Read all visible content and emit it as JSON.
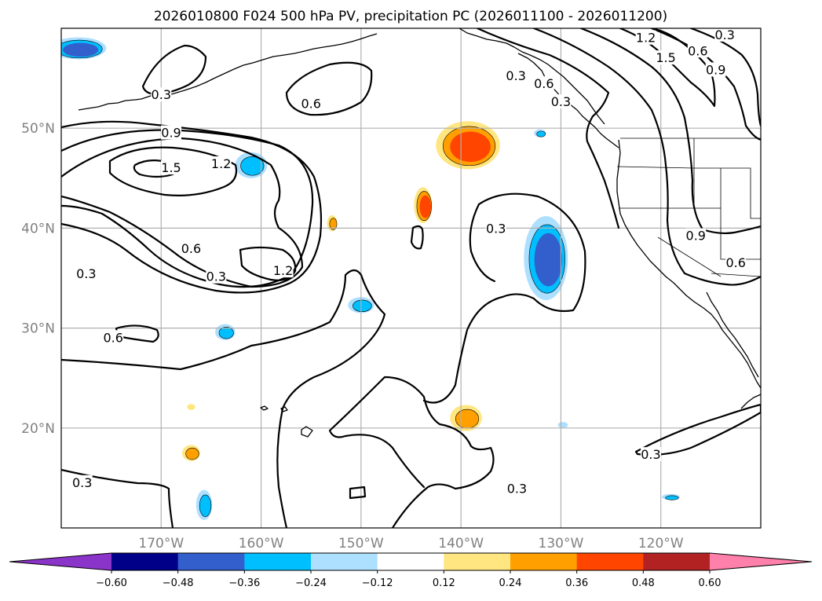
{
  "chart_data": {
    "type": "contour-map",
    "title": "2026010800 F024 500 hPa PV, precipitation PC (2026011100 - 2026011200)",
    "lat_ticks": [
      "50°N",
      "40°N",
      "30°N",
      "20°N"
    ],
    "lat_values": [
      50,
      40,
      30,
      20
    ],
    "lon_ticks": [
      "170°W",
      "160°W",
      "150°W",
      "140°W",
      "130°W",
      "120°W"
    ],
    "lon_values": [
      -170,
      -160,
      -150,
      -140,
      -130,
      -120
    ],
    "extent": {
      "lon_min": -180,
      "lon_max": -110,
      "lat_min": 10,
      "lat_max": 60
    },
    "grid": true,
    "contour_levels": [
      0.3,
      0.6,
      0.9,
      1.2,
      1.5
    ],
    "contour_labels": [
      {
        "text": "0.3",
        "lon": -170,
        "lat": 53.3
      },
      {
        "text": "0.9",
        "lon": -169,
        "lat": 49.5
      },
      {
        "text": "1.5",
        "lon": -169,
        "lat": 46.0
      },
      {
        "text": "1.2",
        "lon": -164,
        "lat": 46.4
      },
      {
        "text": "0.6",
        "lon": -155,
        "lat": 52.4
      },
      {
        "text": "0.6",
        "lon": -167,
        "lat": 37.9
      },
      {
        "text": "0.3",
        "lon": -164.5,
        "lat": 35.1
      },
      {
        "text": "0.3",
        "lon": -177.5,
        "lat": 35.4
      },
      {
        "text": "1.2",
        "lon": -157.8,
        "lat": 35.7
      },
      {
        "text": "0.6",
        "lon": -174.8,
        "lat": 29.0
      },
      {
        "text": "0.3",
        "lon": -136.5,
        "lat": 39.9
      },
      {
        "text": "0.3",
        "lon": -134.5,
        "lat": 55.2
      },
      {
        "text": "0.3",
        "lon": -130,
        "lat": 52.6
      },
      {
        "text": "0.6",
        "lon": -131.7,
        "lat": 54.4
      },
      {
        "text": "1.2",
        "lon": -121.5,
        "lat": 59.0
      },
      {
        "text": "1.5",
        "lon": -119.5,
        "lat": 57.0
      },
      {
        "text": "0.6",
        "lon": -116.3,
        "lat": 57.7
      },
      {
        "text": "0.9",
        "lon": -114.5,
        "lat": 55.8
      },
      {
        "text": "0.3",
        "lon": -113.6,
        "lat": 59.3
      },
      {
        "text": "0.9",
        "lon": -116.5,
        "lat": 39.2
      },
      {
        "text": "0.6",
        "lon": -112.5,
        "lat": 36.5
      },
      {
        "text": "0.3",
        "lon": -121,
        "lat": 17.3
      },
      {
        "text": "0.3",
        "lon": -134.4,
        "lat": 13.9
      },
      {
        "text": "0.3",
        "lon": -177.9,
        "lat": 14.5
      }
    ],
    "colorbar": {
      "levels": [
        -0.6,
        -0.48,
        -0.36,
        -0.24,
        -0.12,
        0.12,
        0.24,
        0.36,
        0.48,
        0.6
      ],
      "tick_labels": [
        "−0.60",
        "−0.48",
        "−0.36",
        "−0.24",
        "−0.12",
        "0.12",
        "0.24",
        "0.36",
        "0.48",
        "0.60"
      ],
      "colors": [
        "#8b34c9",
        "#000088",
        "#335fcc",
        "#00bfff",
        "#addfff",
        "#ffffff",
        "#ffe680",
        "#ffa000",
        "#ff4500",
        "#b22222",
        "#ff80aa"
      ],
      "extend": "both"
    },
    "precip_features": [
      {
        "name": "pos-north-pacific",
        "lon": -139.3,
        "lat": 48.3,
        "rx": 3.2,
        "ry": 2.4,
        "colors": [
          "#ffe680",
          "#ffa000",
          "#ff4500"
        ]
      },
      {
        "name": "pos-small-144w",
        "lon": -143.8,
        "lat": 42.3,
        "rx": 0.9,
        "ry": 1.8,
        "colors": [
          "#ffe680",
          "#ffa000",
          "#ff4500"
        ]
      },
      {
        "name": "pos-small-153w",
        "lon": -152.9,
        "lat": 40.5,
        "rx": 0.5,
        "ry": 0.8,
        "colors": [
          "#ffe680",
          "#ffa000"
        ]
      },
      {
        "name": "pos-subtropic-139w",
        "lon": -139.5,
        "lat": 21.0,
        "rx": 1.6,
        "ry": 1.3,
        "colors": [
          "#ffe680",
          "#ffa000"
        ]
      },
      {
        "name": "pos-small-166w",
        "lon": -167.0,
        "lat": 17.5,
        "rx": 0.9,
        "ry": 0.8,
        "colors": [
          "#ffe680",
          "#ffa000"
        ]
      },
      {
        "name": "pos-tiny-167w",
        "lon": -167.0,
        "lat": 22.1,
        "rx": 0.4,
        "ry": 0.3,
        "colors": [
          "#ffe680"
        ]
      },
      {
        "name": "neg-northwest",
        "lon": -178.3,
        "lat": 58.0,
        "rx": 2.8,
        "ry": 1.1,
        "colors": [
          "#addfff",
          "#00bfff",
          "#335fcc"
        ]
      },
      {
        "name": "neg-161w",
        "lon": -161.0,
        "lat": 46.3,
        "rx": 1.6,
        "ry": 1.3,
        "colors": [
          "#addfff",
          "#00bfff"
        ]
      },
      {
        "name": "neg-150w",
        "lon": -150.0,
        "lat": 32.3,
        "rx": 1.3,
        "ry": 0.8,
        "colors": [
          "#addfff",
          "#00bfff"
        ]
      },
      {
        "name": "neg-164w",
        "lon": -163.6,
        "lat": 29.6,
        "rx": 1.0,
        "ry": 0.8,
        "colors": [
          "#addfff",
          "#00bfff"
        ]
      },
      {
        "name": "neg-131w",
        "lon": -131.5,
        "lat": 37.0,
        "rx": 2.2,
        "ry": 4.2,
        "colors": [
          "#addfff",
          "#00bfff",
          "#335fcc"
        ]
      },
      {
        "name": "neg-166w",
        "lon": -165.7,
        "lat": 12.3,
        "rx": 0.8,
        "ry": 1.5,
        "colors": [
          "#addfff",
          "#00bfff"
        ]
      },
      {
        "name": "neg-132w",
        "lon": -132.1,
        "lat": 49.5,
        "rx": 0.6,
        "ry": 0.4,
        "colors": [
          "#addfff",
          "#00bfff"
        ]
      },
      {
        "name": "neg-130w",
        "lon": -129.8,
        "lat": 20.3,
        "rx": 0.5,
        "ry": 0.3,
        "colors": [
          "#addfff"
        ]
      },
      {
        "name": "neg-119w",
        "lon": -119.0,
        "lat": 13.1,
        "rx": 0.9,
        "ry": 0.3,
        "colors": [
          "#addfff",
          "#00bfff"
        ]
      }
    ]
  }
}
